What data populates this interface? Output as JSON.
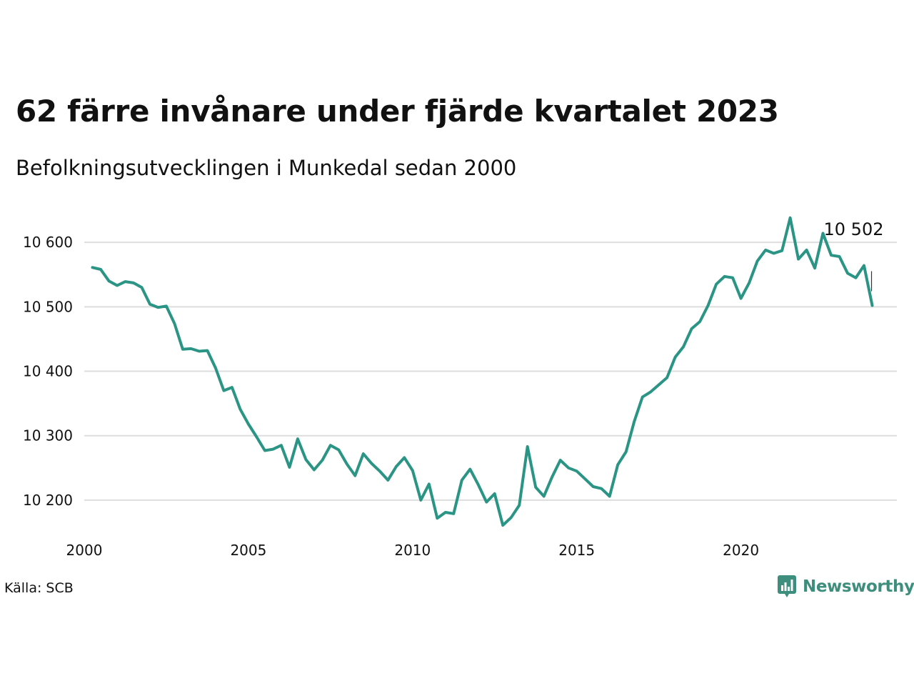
{
  "title": "62 färre invånare under fjärde kvartalet 2023",
  "subtitle": "Befolkningsutvecklingen i Munkedal sedan 2000",
  "source": "Källa: SCB",
  "logo": {
    "text": "Newsworthy",
    "icon": "bar-chart-speech-bubble-icon"
  },
  "colors": {
    "line": "#2a9485",
    "grid": "#dddddd",
    "logo": "#3e8e7e"
  },
  "chart_data": {
    "type": "line",
    "title": "62 färre invånare under fjärde kvartalet 2023",
    "subtitle": "Befolkningsutvecklingen i Munkedal sedan 2000",
    "xlabel": "",
    "ylabel": "",
    "xlim": [
      2000.0,
      2024.75
    ],
    "ylim": [
      10150,
      10660
    ],
    "x_ticks": [
      2000,
      2005,
      2010,
      2015,
      2020
    ],
    "x_tick_labels": [
      "2000",
      "2005",
      "2010",
      "2015",
      "2020"
    ],
    "y_ticks": [
      10200,
      10300,
      10400,
      10500,
      10600
    ],
    "y_tick_labels": [
      "10 200",
      "10 300",
      "10 400",
      "10 500",
      "10 600"
    ],
    "grid": "horizontal",
    "legend": "none",
    "end_label": "10 502",
    "series": [
      {
        "x_start": 2000.25,
        "x_step": 0.25,
        "values": [
          10561,
          10558,
          10540,
          10533,
          10539,
          10537,
          10530,
          10504,
          10499,
          10501,
          10474,
          10434,
          10435,
          10431,
          10432,
          10405,
          10370,
          10375,
          10341,
          10318,
          10298,
          10277,
          10279,
          10285,
          10251,
          10295,
          10263,
          10247,
          10262,
          10285,
          10278,
          10256,
          10238,
          10272,
          10257,
          10245,
          10231,
          10252,
          10266,
          10246,
          10200,
          10225,
          10172,
          10181,
          10179,
          10231,
          10248,
          10224,
          10197,
          10210,
          10161,
          10173,
          10192,
          10283,
          10220,
          10206,
          10236,
          10262,
          10250,
          10245,
          10233,
          10221,
          10218,
          10206,
          10255,
          10275,
          10322,
          10360,
          10368,
          10379,
          10390,
          10422,
          10438,
          10466,
          10477,
          10502,
          10535,
          10547,
          10545,
          10513,
          10537,
          10571,
          10588,
          10583,
          10587,
          10638,
          10574,
          10588,
          10560,
          10614,
          10580,
          10578,
          10552,
          10545,
          10564,
          10502
        ]
      }
    ]
  }
}
